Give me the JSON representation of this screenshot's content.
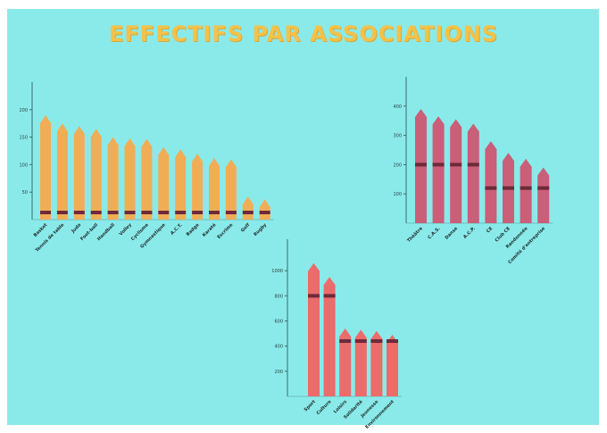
{
  "title": "EFFECTIFS PAR ASSOCIATIONS",
  "colors": {
    "background": "#8aeaea",
    "chart1_bar": "#f0ad56",
    "chart2_bar": "#c95f78",
    "chart3_bar": "#ec6b6b",
    "marker": "#6e2a3a"
  },
  "chart_data": [
    {
      "type": "bar",
      "title": "",
      "xlabel": "",
      "ylabel": "",
      "ylim": [
        0,
        250
      ],
      "yticks": [
        50,
        100,
        150,
        200
      ],
      "ytick_labels": [
        "50",
        "100",
        "150",
        "200"
      ],
      "categories": [
        "Basket",
        "Tennis de table",
        "Judo",
        "Foot-ball",
        "Handball",
        "Volley",
        "Cyclisme",
        "Gymnastique",
        "A.C.T.",
        "Badge",
        "Karaté",
        "Escrime",
        "Golf",
        "Rugby"
      ],
      "values": [
        190,
        175,
        170,
        165,
        150,
        148,
        147,
        132,
        128,
        120,
        112,
        110,
        42,
        37
      ],
      "marker_values": [
        13,
        13,
        13,
        13,
        13,
        13,
        13,
        13,
        13,
        13,
        13,
        13,
        13,
        13
      ]
    },
    {
      "type": "bar",
      "title": "",
      "xlabel": "",
      "ylabel": "",
      "ylim": [
        0,
        500
      ],
      "yticks": [
        100,
        200,
        300,
        400
      ],
      "ytick_labels": [
        "100",
        "200",
        "300",
        "400"
      ],
      "categories": [
        "Théâtre",
        "C.A.S.",
        "Danse",
        "A.C.P.",
        "CE",
        "Club CE",
        "Randonnée",
        "Comité d'entreprise"
      ],
      "values": [
        390,
        365,
        355,
        340,
        280,
        240,
        220,
        190
      ],
      "marker_values": [
        200,
        200,
        200,
        200,
        120,
        120,
        120,
        120
      ]
    },
    {
      "type": "bar",
      "title": "",
      "xlabel": "",
      "ylabel": "",
      "ylim": [
        0,
        1250
      ],
      "yticks": [
        200,
        400,
        600,
        800,
        1000
      ],
      "ytick_labels": [
        "200",
        "400",
        "600",
        "800",
        "1000"
      ],
      "categories": [
        "Sport",
        "Culture",
        "Loisirs",
        "Solidarité",
        "Jeunesse",
        "Environnement"
      ],
      "values": [
        1060,
        950,
        540,
        530,
        520,
        490
      ],
      "marker_values": [
        800,
        800,
        440,
        440,
        440,
        440
      ]
    }
  ]
}
